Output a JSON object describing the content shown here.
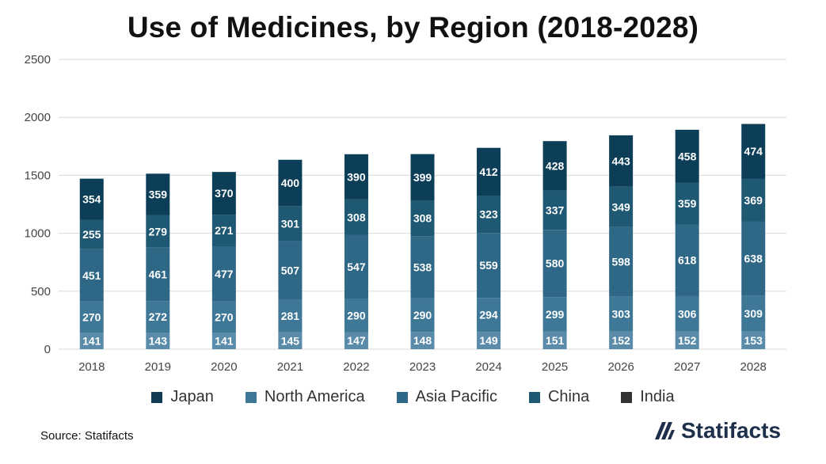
{
  "chart_data": {
    "type": "bar",
    "stacked": true,
    "title": "Use of Medicines, by Region (2018-2028)",
    "categories": [
      "2018",
      "2019",
      "2020",
      "2021",
      "2022",
      "2023",
      "2024",
      "2025",
      "2026",
      "2027",
      "2028"
    ],
    "series": [
      {
        "name": "North America",
        "values": [
          141,
          143,
          141,
          145,
          147,
          148,
          149,
          151,
          152,
          152,
          153
        ],
        "color": "#5a8ba9"
      },
      {
        "name": "Asia Pacific",
        "values": [
          270,
          272,
          270,
          281,
          290,
          290,
          294,
          299,
          303,
          306,
          309
        ],
        "color": "#3f7896"
      },
      {
        "name": "China",
        "values": [
          451,
          461,
          477,
          507,
          547,
          538,
          559,
          580,
          598,
          618,
          638
        ],
        "color": "#2f6886"
      },
      {
        "name": "India",
        "values": [
          255,
          279,
          271,
          301,
          308,
          308,
          323,
          337,
          349,
          359,
          369
        ],
        "color": "#1f5872"
      },
      {
        "name": "Japan",
        "values": [
          354,
          359,
          370,
          400,
          390,
          399,
          412,
          428,
          443,
          458,
          474
        ],
        "color": "#0c3e58"
      }
    ],
    "ylim": [
      0,
      2500
    ],
    "yticks": [
      0,
      500,
      1000,
      1500,
      2000,
      2500
    ],
    "xlabel": "",
    "ylabel": "",
    "legend": {
      "position": "bottom",
      "entries": [
        {
          "label": "Japan",
          "color": "#0f3b55"
        },
        {
          "label": "North America",
          "color": "#3f7896"
        },
        {
          "label": "Asia Pacific",
          "color": "#2f6886"
        },
        {
          "label": "China",
          "color": "#1f5872"
        },
        {
          "label": "India",
          "color": "#333333"
        }
      ]
    }
  },
  "footer": {
    "source": "Source: Statifacts",
    "brand": "Statifacts",
    "brand_icon": "statifacts-logo-icon"
  }
}
